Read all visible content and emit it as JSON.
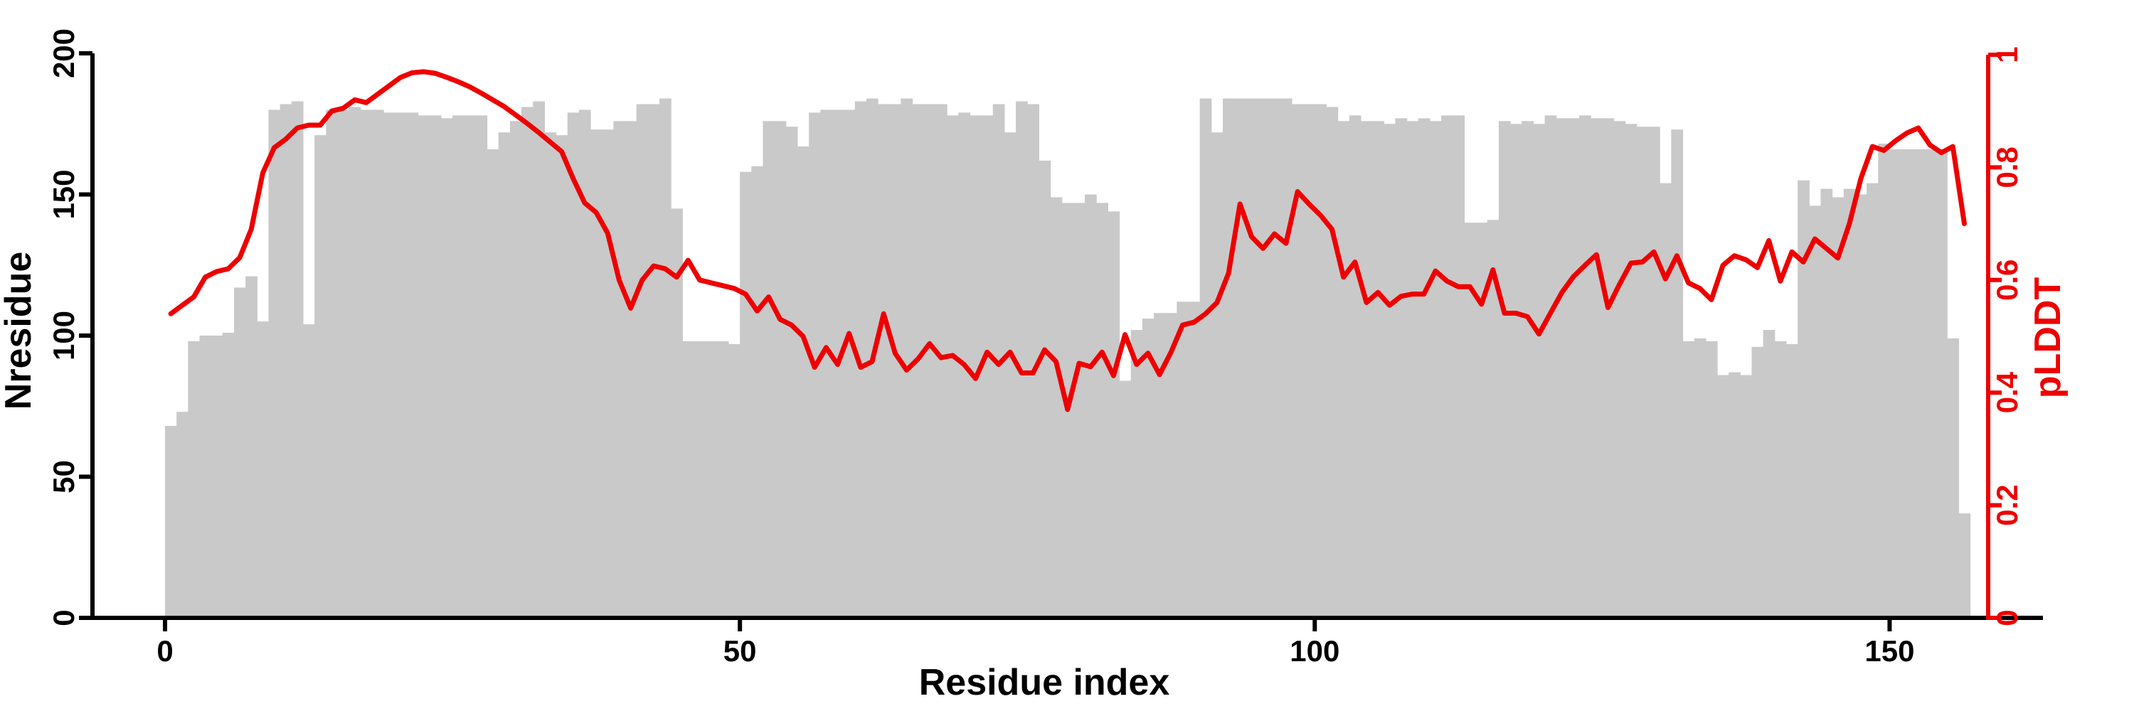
{
  "figure": {
    "background": "#ffffff"
  },
  "colors": {
    "bar": "#c9c9c9",
    "line": "#ee0000",
    "axis": "#000000"
  },
  "chart_data": {
    "type": "bar",
    "title": "",
    "xlabel": "Residue index",
    "ylabel_left": "Nresidue",
    "ylabel_right": "pLDDT",
    "n_residues": 157,
    "x_range": [
      0,
      157
    ],
    "yleft_range": [
      0,
      200
    ],
    "yright_range": [
      0,
      1
    ],
    "x_ticks": [
      0,
      50,
      100,
      150
    ],
    "yleft_ticks": [
      0,
      50,
      100,
      150,
      200
    ],
    "yright_ticks": [
      0,
      0.2,
      0.4,
      0.6,
      0.8,
      1
    ],
    "grid": false,
    "legend": "none",
    "series": [
      {
        "name": "Nresidue",
        "type": "bar",
        "axis": "left",
        "color": "#c9c9c9",
        "values": [
          68,
          73,
          98,
          100,
          100,
          101,
          117,
          121,
          105,
          180,
          182,
          183,
          104,
          171,
          180,
          180,
          181,
          180,
          180,
          179,
          179,
          179,
          178,
          178,
          177,
          178,
          178,
          178,
          166,
          172,
          176,
          181,
          183,
          172,
          171,
          179,
          180,
          173,
          173,
          176,
          176,
          182,
          182,
          184,
          145,
          98,
          98,
          98,
          98,
          97,
          158,
          160,
          176,
          176,
          174,
          167,
          179,
          180,
          180,
          180,
          183,
          184,
          182,
          182,
          184,
          182,
          182,
          182,
          178,
          179,
          178,
          178,
          182,
          172,
          183,
          182,
          162,
          149,
          147,
          147,
          150,
          147,
          144,
          84,
          102,
          106,
          108,
          108,
          112,
          112,
          184,
          172,
          184,
          184,
          184,
          184,
          184,
          184,
          182,
          182,
          182,
          181,
          176,
          178,
          176,
          176,
          175,
          177,
          176,
          177,
          176,
          178,
          178,
          140,
          140,
          141,
          176,
          175,
          176,
          175,
          178,
          177,
          177,
          178,
          177,
          177,
          176,
          175,
          174,
          174,
          154,
          173,
          98,
          99,
          98,
          86,
          87,
          86,
          96,
          102,
          98,
          97,
          155,
          146,
          152,
          149,
          152,
          150,
          154,
          168,
          166,
          166,
          166,
          166,
          166,
          99,
          37
        ]
      },
      {
        "name": "pLDDT",
        "type": "line",
        "axis": "right",
        "color": "#ee0000",
        "values": [
          0.54,
          0.555,
          0.57,
          0.605,
          0.615,
          0.62,
          0.64,
          0.69,
          0.79,
          0.835,
          0.85,
          0.87,
          0.875,
          0.875,
          0.9,
          0.905,
          0.92,
          0.915,
          0.93,
          0.945,
          0.96,
          0.968,
          0.97,
          0.967,
          0.96,
          0.952,
          0.943,
          0.932,
          0.92,
          0.908,
          0.893,
          0.878,
          0.862,
          0.845,
          0.828,
          0.78,
          0.737,
          0.72,
          0.683,
          0.6,
          0.55,
          0.6,
          0.625,
          0.62,
          0.605,
          0.635,
          0.6,
          0.595,
          0.59,
          0.585,
          0.575,
          0.545,
          0.57,
          0.53,
          0.52,
          0.5,
          0.445,
          0.48,
          0.45,
          0.505,
          0.445,
          0.455,
          0.54,
          0.47,
          0.44,
          0.46,
          0.487,
          0.462,
          0.466,
          0.45,
          0.425,
          0.472,
          0.45,
          0.472,
          0.435,
          0.435,
          0.476,
          0.455,
          0.37,
          0.452,
          0.446,
          0.472,
          0.43,
          0.503,
          0.45,
          0.47,
          0.432,
          0.472,
          0.52,
          0.525,
          0.54,
          0.56,
          0.612,
          0.735,
          0.677,
          0.656,
          0.682,
          0.665,
          0.757,
          0.735,
          0.715,
          0.69,
          0.605,
          0.632,
          0.56,
          0.578,
          0.555,
          0.571,
          0.575,
          0.575,
          0.616,
          0.598,
          0.588,
          0.588,
          0.557,
          0.618,
          0.541,
          0.541,
          0.535,
          0.504,
          0.541,
          0.578,
          0.606,
          0.626,
          0.645,
          0.551,
          0.592,
          0.63,
          0.632,
          0.65,
          0.602,
          0.643,
          0.595,
          0.585,
          0.565,
          0.626,
          0.643,
          0.636,
          0.622,
          0.67,
          0.598,
          0.65,
          0.632,
          0.673,
          0.656,
          0.639,
          0.7,
          0.78,
          0.837,
          0.83,
          0.847,
          0.861,
          0.87,
          0.84,
          0.826,
          0.837,
          0.7
        ]
      }
    ]
  }
}
